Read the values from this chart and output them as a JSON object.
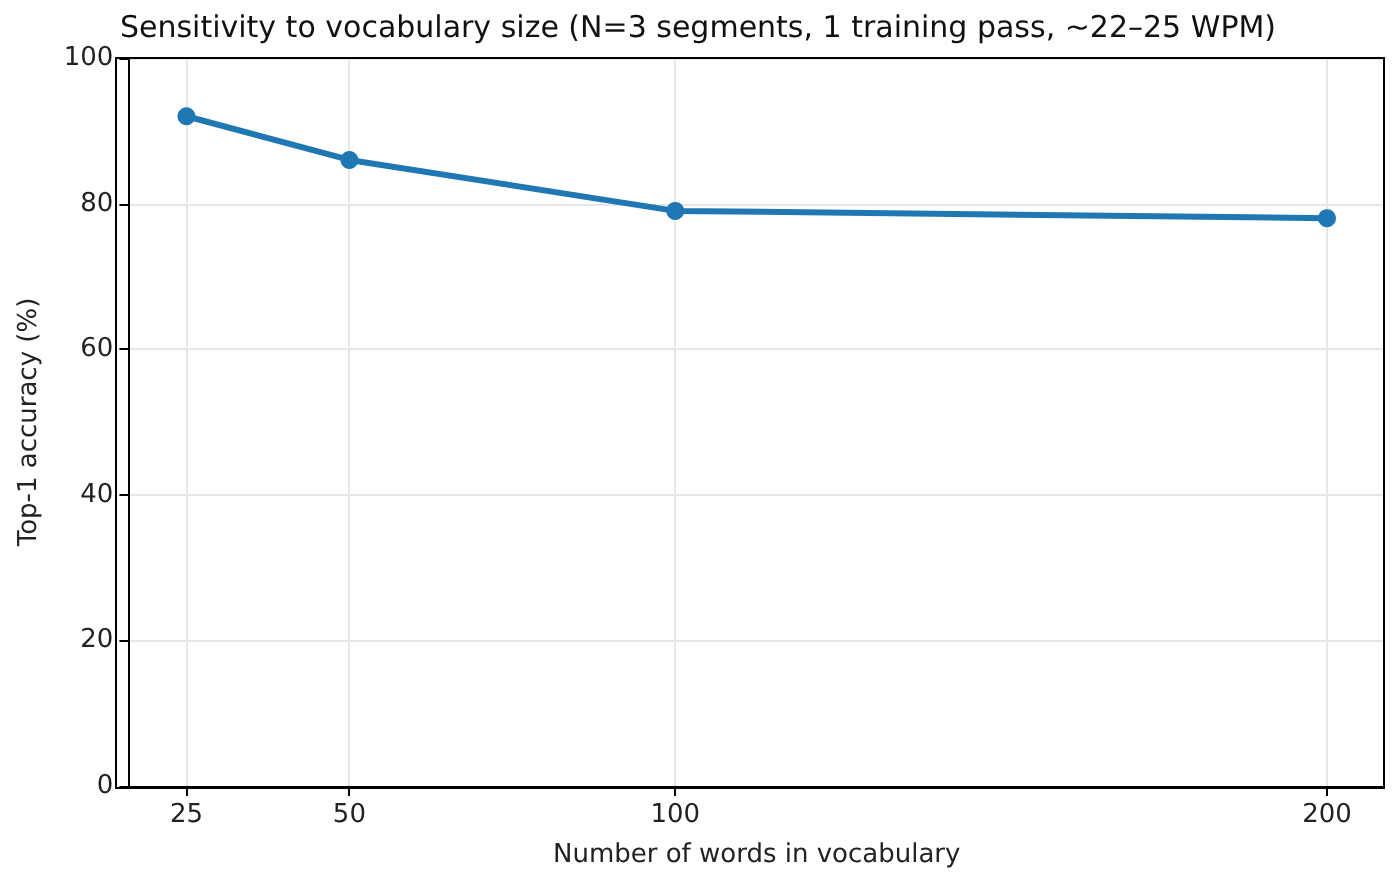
{
  "chart_data": {
    "type": "line",
    "title": "Sensitivity to vocabulary size (N=3 segments, 1 training pass, ~22–25 WPM)",
    "xlabel": "Number of words in vocabulary",
    "ylabel": "Top-1 accuracy (%)",
    "x": [
      25,
      50,
      100,
      200
    ],
    "series": [
      {
        "color": "#1f77b4",
        "values": [
          92,
          86,
          79,
          78
        ]
      }
    ],
    "xlim": [
      16.25,
      208.75
    ],
    "xticks": [
      25,
      50,
      100,
      200
    ],
    "ylim": [
      0,
      100
    ],
    "yticks": [
      0,
      20,
      40,
      60,
      80,
      100
    ],
    "grid": true,
    "marker": "circle",
    "line_style": "solid"
  }
}
